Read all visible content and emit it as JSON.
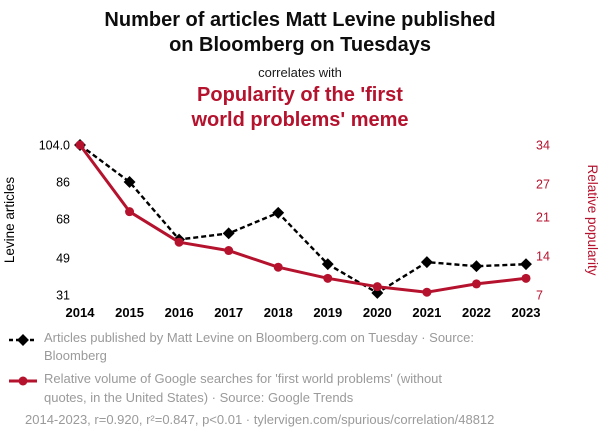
{
  "header": {
    "title1": "Number of articles Matt Levine published\non Bloomberg on Tuesdays",
    "connector": "correlates with",
    "title2": "Popularity of the 'first\nworld problems' meme",
    "title2_color": "#b5122e"
  },
  "chart_data": {
    "type": "line",
    "x": [
      "2014",
      "2015",
      "2016",
      "2017",
      "2018",
      "2019",
      "2020",
      "2021",
      "2022",
      "2023"
    ],
    "left_axis": {
      "label": "Levine articles",
      "ticks": [
        "104.0",
        "86",
        "68",
        "49",
        "31"
      ],
      "tick_values": [
        104,
        86,
        68,
        49,
        31
      ],
      "range": [
        31,
        104
      ],
      "color": "#000000"
    },
    "right_axis": {
      "label": "Relative popularity",
      "ticks": [
        "34",
        "27",
        "21",
        "14",
        "7"
      ],
      "tick_values": [
        34,
        27,
        21,
        14,
        7
      ],
      "range": [
        7,
        34
      ],
      "color": "#b5122e"
    },
    "series": [
      {
        "name": "Articles published by Matt Levine on Bloomberg.com on Tuesday",
        "source": "Bloomberg",
        "axis": "left",
        "color": "#000000",
        "line_style": "dashed",
        "marker": "diamond",
        "values": [
          104,
          86,
          58,
          61,
          71,
          46,
          32,
          47,
          45,
          46
        ]
      },
      {
        "name": "Relative volume of Google searches for 'first world problems' (without quotes, in the United States)",
        "source": "Google Trends",
        "axis": "right",
        "color": "#b5122e",
        "line_style": "solid",
        "marker": "circle",
        "values": [
          34,
          22,
          16.5,
          15,
          12,
          10,
          8.5,
          7.5,
          9,
          10
        ]
      }
    ],
    "grid": false,
    "legend_position": "bottom"
  },
  "legend": {
    "items": [
      {
        "text": "Articles published by Matt Levine on Bloomberg.com on Tuesday · Source:\nBloomberg"
      },
      {
        "text": "Relative volume of Google searches for 'first world problems' (without\nquotes, in the United States) · Source: Google Trends"
      }
    ],
    "footer": "2014-2023, r=0.920, r²=0.847, p<0.01 · tylervigen.com/spurious/correlation/48812"
  }
}
